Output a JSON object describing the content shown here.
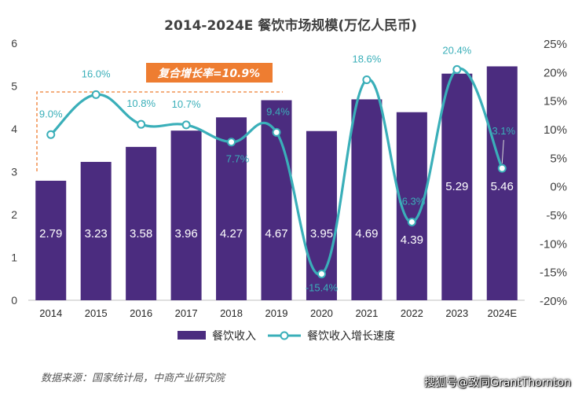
{
  "chart_data": {
    "type": "bar+line",
    "title": "2014-2024E 餐饮市场规模(万亿人民币)",
    "categories": [
      "2014",
      "2015",
      "2016",
      "2017",
      "2018",
      "2019",
      "2020",
      "2021",
      "2022",
      "2023",
      "2024E"
    ],
    "series": [
      {
        "name": "餐饮收入",
        "type": "bar",
        "axis": "left",
        "color": "#4B2C7F",
        "values": [
          2.79,
          3.23,
          3.58,
          3.96,
          4.27,
          4.67,
          3.95,
          4.69,
          4.39,
          5.29,
          5.46
        ],
        "labels": [
          "2.79",
          "3.23",
          "3.58",
          "3.96",
          "4.27",
          "4.67",
          "3.95",
          "4.69",
          "4.39",
          "5.29",
          "5.46"
        ]
      },
      {
        "name": "餐饮收入增长速度",
        "type": "line",
        "axis": "right",
        "color": "#3AAFB9",
        "values": [
          9.0,
          16.0,
          10.8,
          10.7,
          7.7,
          9.4,
          -15.4,
          18.6,
          -6.3,
          20.4,
          3.1
        ],
        "labels": [
          "9.0%",
          "16.0%",
          "10.8%",
          "10.7%",
          "7.7%",
          "9.4%",
          "-15.4%",
          "18.6%",
          "-6.3%",
          "20.4%",
          "3.1%"
        ]
      }
    ],
    "y_left": {
      "min": 0,
      "max": 6,
      "ticks": [
        "0",
        "1",
        "2",
        "3",
        "4",
        "5",
        "6"
      ]
    },
    "y_right": {
      "min": -20,
      "max": 25,
      "ticks": [
        "-20%",
        "-15%",
        "-10%",
        "-5%",
        "0%",
        "5%",
        "10%",
        "15%",
        "20%",
        "25%"
      ]
    },
    "annotation": {
      "text": "复合增长率=10.9%",
      "color": "#EE7D31"
    },
    "legend": {
      "position": "bottom"
    }
  },
  "source_text": "数据来源：国家统计局，中商产业研究院",
  "watermark": "搜狐号@致同GrantThornton"
}
